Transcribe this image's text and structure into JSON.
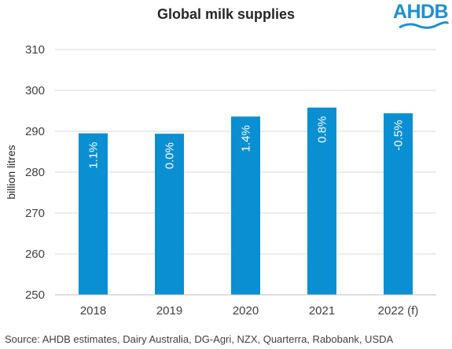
{
  "chart_data": {
    "type": "bar",
    "title": "Global milk supplies",
    "ylabel": "billion litres",
    "xlabel": "",
    "categories": [
      "2018",
      "2019",
      "2020",
      "2021",
      "2022 (f)"
    ],
    "values": [
      289.5,
      289.4,
      293.6,
      295.8,
      294.4
    ],
    "data_labels": [
      "1.1%",
      "0.0%",
      "1.4%",
      "0.8%",
      "-0.5%"
    ],
    "ylim": [
      250,
      310
    ],
    "yticks": [
      250,
      260,
      270,
      280,
      290,
      300,
      310
    ],
    "grid": true,
    "bar_color": "#0a8fd3"
  },
  "logo": {
    "text": "AHDB",
    "color": "#1f8fd0"
  },
  "source": "Source: AHDB estimates, Dairy Australia, DG-Agri, NZX, Quarterra, Rabobank, USDA"
}
